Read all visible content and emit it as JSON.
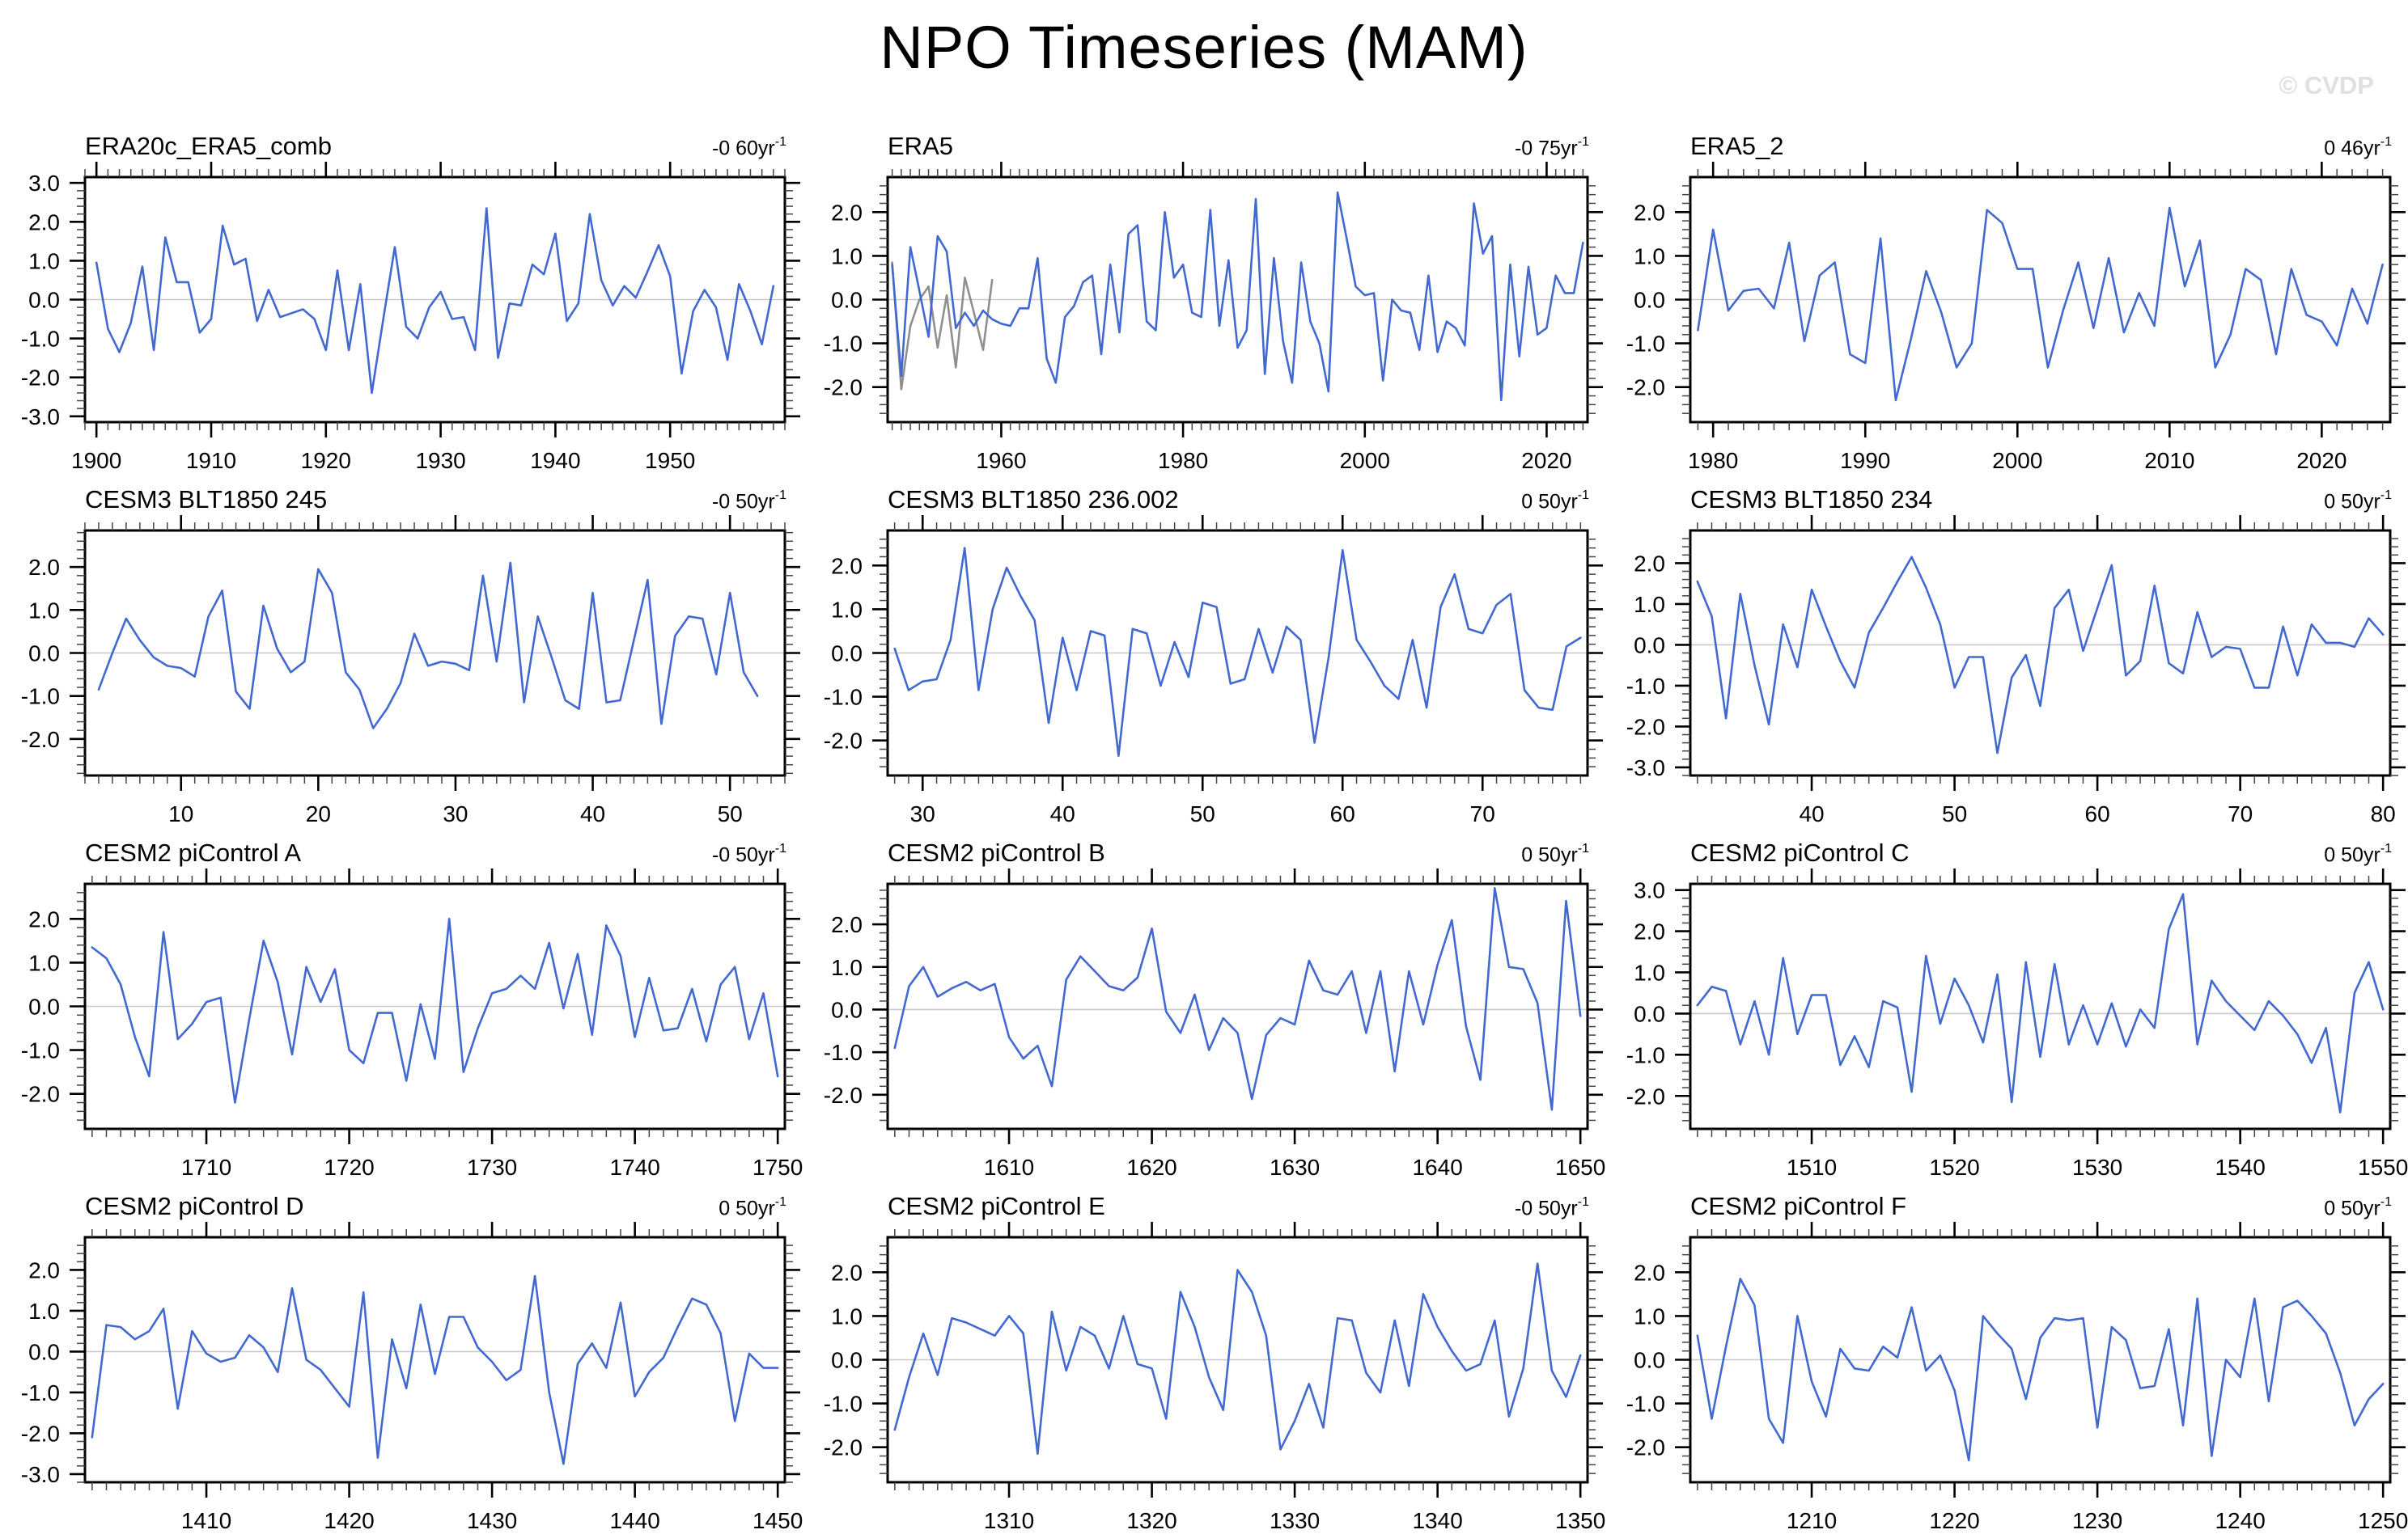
{
  "page": {
    "title": "NPO Timeseries (MAM)",
    "watermark": "© CVDP"
  },
  "colors": {
    "line": "#4169D0",
    "ref_line": "#8F8F8F",
    "zero_line": "#C9C9C9",
    "axis": "#000000",
    "minor_tick": "#444444"
  },
  "chart_data": [
    {
      "type": "line",
      "name": "ERA20c_ERA5_comb",
      "trend": "-0 60yr",
      "trend_sup": "-1",
      "x_start": 1900,
      "x_step": 1,
      "xlim": [
        1899,
        1960
      ],
      "ylim": [
        -3.15,
        3.15
      ],
      "xticks": [
        1900,
        1910,
        1920,
        1930,
        1940,
        1950
      ],
      "yticks": [
        3.0,
        2.0,
        1.0,
        0.0,
        -1.0,
        -2.0,
        -3.0
      ],
      "y_minor_step": 0.2,
      "x_minor_step": 1,
      "values": [
        0.95,
        -0.75,
        -1.35,
        -0.6,
        0.85,
        -1.3,
        1.6,
        0.45,
        0.45,
        -0.85,
        -0.5,
        1.9,
        0.9,
        1.05,
        -0.55,
        0.25,
        -0.45,
        -0.35,
        -0.25,
        -0.5,
        -1.3,
        0.75,
        -1.3,
        0.4,
        -2.4,
        -0.5,
        1.35,
        -0.7,
        -1.0,
        -0.2,
        0.2,
        -0.5,
        -0.45,
        -1.3,
        2.35,
        -1.5,
        -0.1,
        -0.15,
        0.9,
        0.65,
        1.7,
        -0.55,
        -0.1,
        2.2,
        0.5,
        -0.15,
        0.35,
        0.05,
        0.7,
        1.4,
        0.6,
        -1.9,
        -0.3,
        0.25,
        -0.2,
        -1.55,
        0.4,
        -0.3,
        -1.15,
        0.35
      ]
    },
    {
      "type": "line",
      "name": "ERA5",
      "trend": "-0 75yr",
      "trend_sup": "-1",
      "x_start": 1948,
      "x_step": 1,
      "xlim": [
        1947.5,
        2024.5
      ],
      "ylim": [
        -2.8,
        2.8
      ],
      "xticks": [
        1960,
        1980,
        2000,
        2020
      ],
      "yticks": [
        2.0,
        1.0,
        0.0,
        -1.0,
        -2.0
      ],
      "y_minor_step": 0.2,
      "x_minor_step": 1,
      "values": [
        0.8,
        -1.75,
        1.2,
        0.2,
        -0.85,
        1.45,
        1.1,
        -0.65,
        -0.3,
        -0.6,
        -0.25,
        -0.45,
        -0.55,
        -0.6,
        -0.2,
        -0.2,
        0.95,
        -1.35,
        -1.9,
        -0.4,
        -0.15,
        0.4,
        0.55,
        -1.25,
        0.8,
        -0.75,
        1.5,
        1.7,
        -0.5,
        -0.7,
        2.0,
        0.5,
        0.8,
        -0.3,
        -0.4,
        2.05,
        -0.6,
        0.9,
        -1.1,
        -0.7,
        2.3,
        -1.7,
        0.95,
        -0.95,
        -1.9,
        0.85,
        -0.5,
        -1.0,
        -2.1,
        2.45,
        1.4,
        0.3,
        0.1,
        0.15,
        -1.85,
        0.0,
        -0.25,
        -0.3,
        -1.15,
        0.55,
        -1.2,
        -0.5,
        -0.65,
        -1.05,
        2.2,
        1.05,
        1.45,
        -2.3,
        0.8,
        -1.3,
        0.75,
        -0.8,
        -0.65,
        0.55,
        0.15,
        0.15,
        1.3
      ],
      "ref_x_start": 1948,
      "ref_values": [
        0.85,
        -2.05,
        -0.6,
        0.0,
        0.3,
        -1.1,
        0.1,
        -1.55,
        0.5,
        -0.3,
        -1.15,
        0.45
      ]
    },
    {
      "type": "line",
      "name": "ERA5_2",
      "trend": "0 46yr",
      "trend_sup": "-1",
      "x_start": 1979,
      "x_step": 1,
      "xlim": [
        1978.5,
        2024.5
      ],
      "ylim": [
        -2.8,
        2.8
      ],
      "xticks": [
        1980,
        1990,
        2000,
        2010,
        2020
      ],
      "yticks": [
        2.0,
        1.0,
        0.0,
        -1.0,
        -2.0
      ],
      "y_minor_step": 0.2,
      "x_minor_step": 1,
      "values": [
        -0.7,
        1.6,
        -0.25,
        0.2,
        0.25,
        -0.2,
        1.3,
        -0.95,
        0.55,
        0.85,
        -1.25,
        -1.45,
        1.4,
        -2.3,
        -0.9,
        0.65,
        -0.3,
        -1.55,
        -1.0,
        2.05,
        1.75,
        0.7,
        0.7,
        -1.55,
        -0.25,
        0.85,
        -0.65,
        0.95,
        -0.75,
        0.15,
        -0.6,
        2.1,
        0.3,
        1.35,
        -1.55,
        -0.8,
        0.7,
        0.45,
        -1.25,
        0.7,
        -0.35,
        -0.5,
        -1.05,
        0.25,
        -0.55,
        0.8
      ]
    },
    {
      "type": "line",
      "name": "CESM3 BLT1850 245",
      "trend": "-0 50yr",
      "trend_sup": "-1",
      "x_start": 4,
      "x_step": 1,
      "xlim": [
        3,
        54
      ],
      "ylim": [
        -2.85,
        2.85
      ],
      "xticks": [
        10,
        20,
        30,
        40,
        50
      ],
      "yticks": [
        2.0,
        1.0,
        0.0,
        -1.0,
        -2.0
      ],
      "y_minor_step": 0.2,
      "x_minor_step": 1,
      "values": [
        -0.85,
        0.0,
        0.8,
        0.3,
        -0.1,
        -0.3,
        -0.35,
        -0.55,
        0.85,
        1.45,
        -0.9,
        -1.3,
        1.1,
        0.1,
        -0.45,
        -0.2,
        1.95,
        1.4,
        -0.45,
        -0.85,
        -1.75,
        -1.3,
        -0.7,
        0.45,
        -0.3,
        -0.2,
        -0.25,
        -0.4,
        1.8,
        -0.2,
        2.1,
        -1.15,
        0.85,
        -0.1,
        -1.1,
        -1.3,
        1.4,
        -1.15,
        -1.1,
        0.3,
        1.7,
        -1.65,
        0.4,
        0.85,
        0.8,
        -0.5,
        1.4,
        -0.45,
        -1.0
      ]
    },
    {
      "type": "line",
      "name": "CESM3 BLT1850 236.002",
      "trend": "0 50yr",
      "trend_sup": "-1",
      "x_start": 28,
      "x_step": 1,
      "xlim": [
        27.5,
        77.5
      ],
      "ylim": [
        -2.8,
        2.8
      ],
      "xticks": [
        30,
        40,
        50,
        60,
        70
      ],
      "yticks": [
        2.0,
        1.0,
        0.0,
        -1.0,
        -2.0
      ],
      "y_minor_step": 0.2,
      "x_minor_step": 1,
      "values": [
        0.1,
        -0.85,
        -0.65,
        -0.6,
        0.3,
        2.4,
        -0.85,
        1.0,
        1.95,
        1.3,
        0.75,
        -1.6,
        0.35,
        -0.85,
        0.5,
        0.4,
        -2.35,
        0.55,
        0.45,
        -0.75,
        0.25,
        -0.55,
        1.15,
        1.05,
        -0.7,
        -0.6,
        0.55,
        -0.45,
        0.6,
        0.3,
        -2.05,
        -0.1,
        2.35,
        0.3,
        -0.2,
        -0.75,
        -1.05,
        0.3,
        -1.25,
        1.05,
        1.8,
        0.55,
        0.45,
        1.1,
        1.35,
        -0.85,
        -1.25,
        -1.3,
        0.15,
        0.35
      ]
    },
    {
      "type": "line",
      "name": "CESM3 BLT1850 234",
      "trend": "0 50yr",
      "trend_sup": "-1",
      "x_start": 32,
      "x_step": 1,
      "xlim": [
        31.5,
        80.5
      ],
      "ylim": [
        -3.2,
        2.8
      ],
      "xticks": [
        40,
        50,
        60,
        70,
        80
      ],
      "yticks": [
        2.0,
        1.0,
        0.0,
        -1.0,
        -2.0,
        -3.0
      ],
      "y_minor_step": 0.2,
      "x_minor_step": 1,
      "values": [
        1.55,
        0.7,
        -1.8,
        1.25,
        -0.5,
        -1.95,
        0.5,
        -0.55,
        1.35,
        0.45,
        -0.4,
        -1.05,
        0.3,
        0.9,
        1.55,
        2.15,
        1.4,
        0.5,
        -1.05,
        -0.3,
        -0.3,
        -2.65,
        -0.8,
        -0.25,
        -1.5,
        0.9,
        1.35,
        -0.15,
        0.9,
        1.95,
        -0.75,
        -0.4,
        1.45,
        -0.45,
        -0.7,
        0.8,
        -0.3,
        -0.05,
        -0.1,
        -1.05,
        -1.05,
        0.45,
        -0.75,
        0.5,
        0.05,
        0.05,
        -0.05,
        0.65,
        0.25
      ]
    },
    {
      "type": "line",
      "name": "CESM2 piControl A",
      "trend": "-0 50yr",
      "trend_sup": "-1",
      "x_start": 1702,
      "x_step": 1,
      "xlim": [
        1701.5,
        1750.5
      ],
      "ylim": [
        -2.8,
        2.8
      ],
      "xticks": [
        1710,
        1720,
        1730,
        1740,
        1750
      ],
      "yticks": [
        2.0,
        1.0,
        0.0,
        -1.0,
        -2.0
      ],
      "y_minor_step": 0.2,
      "x_minor_step": 1,
      "values": [
        1.35,
        1.1,
        0.5,
        -0.7,
        -1.6,
        1.7,
        -0.75,
        -0.4,
        0.1,
        0.2,
        -2.2,
        -0.3,
        1.5,
        0.55,
        -1.1,
        0.9,
        0.1,
        0.85,
        -1.0,
        -1.3,
        -0.15,
        -0.15,
        -1.7,
        0.05,
        -1.2,
        2.0,
        -1.5,
        -0.5,
        0.3,
        0.4,
        0.7,
        0.4,
        1.45,
        -0.05,
        1.2,
        -0.65,
        1.85,
        1.15,
        -0.7,
        0.65,
        -0.55,
        -0.5,
        0.4,
        -0.8,
        0.5,
        0.9,
        -0.75,
        0.3,
        -1.6
      ]
    },
    {
      "type": "line",
      "name": "CESM2 piControl B",
      "trend": "0 50yr",
      "trend_sup": "-1",
      "x_start": 1602,
      "x_step": 1,
      "xlim": [
        1601.5,
        1650.5
      ],
      "ylim": [
        -2.8,
        2.95
      ],
      "xticks": [
        1610,
        1620,
        1630,
        1640,
        1650
      ],
      "yticks": [
        2.0,
        1.0,
        0.0,
        -1.0,
        -2.0
      ],
      "y_minor_step": 0.2,
      "x_minor_step": 1,
      "values": [
        -0.9,
        0.55,
        1.0,
        0.3,
        0.5,
        0.65,
        0.45,
        0.6,
        -0.65,
        -1.15,
        -0.85,
        -1.8,
        0.7,
        1.25,
        0.9,
        0.55,
        0.45,
        0.75,
        1.9,
        -0.05,
        -0.55,
        0.35,
        -0.95,
        -0.2,
        -0.55,
        -2.1,
        -0.6,
        -0.2,
        -0.35,
        1.15,
        0.45,
        0.35,
        0.9,
        -0.55,
        0.9,
        -1.45,
        0.9,
        -0.35,
        1.05,
        2.1,
        -0.4,
        -1.65,
        2.85,
        1.0,
        0.95,
        0.15,
        -2.35,
        2.55,
        -0.15
      ]
    },
    {
      "type": "line",
      "name": "CESM2 piControl C",
      "trend": "0 50yr",
      "trend_sup": "-1",
      "x_start": 1502,
      "x_step": 1,
      "xlim": [
        1501.5,
        1550.5
      ],
      "ylim": [
        -2.8,
        3.15
      ],
      "xticks": [
        1510,
        1520,
        1530,
        1540,
        1550
      ],
      "yticks": [
        3.0,
        2.0,
        1.0,
        0.0,
        -1.0,
        -2.0
      ],
      "y_minor_step": 0.2,
      "x_minor_step": 1,
      "values": [
        0.2,
        0.65,
        0.55,
        -0.75,
        0.3,
        -1.0,
        1.35,
        -0.5,
        0.45,
        0.45,
        -1.25,
        -0.55,
        -1.3,
        0.3,
        0.15,
        -1.9,
        1.4,
        -0.25,
        0.85,
        0.2,
        -0.7,
        0.95,
        -2.15,
        1.25,
        -1.05,
        1.2,
        -0.75,
        0.2,
        -0.75,
        0.25,
        -0.8,
        0.1,
        -0.35,
        2.05,
        2.9,
        -0.75,
        0.8,
        0.3,
        -0.05,
        -0.4,
        0.3,
        -0.05,
        -0.5,
        -1.2,
        -0.35,
        -2.4,
        0.5,
        1.25,
        0.1
      ]
    },
    {
      "type": "line",
      "name": "CESM2 piControl D",
      "trend": "0 50yr",
      "trend_sup": "-1",
      "x_start": 1402,
      "x_step": 1,
      "xlim": [
        1401.5,
        1450.5
      ],
      "ylim": [
        -3.2,
        2.8
      ],
      "xticks": [
        1410,
        1420,
        1430,
        1440,
        1450
      ],
      "yticks": [
        2.0,
        1.0,
        0.0,
        -1.0,
        -2.0,
        -3.0
      ],
      "y_minor_step": 0.2,
      "x_minor_step": 1,
      "values": [
        -2.1,
        0.65,
        0.6,
        0.3,
        0.5,
        1.05,
        -1.4,
        0.5,
        -0.05,
        -0.25,
        -0.15,
        0.4,
        0.1,
        -0.5,
        1.55,
        -0.2,
        -0.45,
        -0.9,
        -1.35,
        1.45,
        -2.6,
        0.3,
        -0.9,
        1.15,
        -0.55,
        0.85,
        0.85,
        0.1,
        -0.25,
        -0.7,
        -0.45,
        1.85,
        -1.0,
        -2.75,
        -0.3,
        0.2,
        -0.4,
        1.2,
        -1.1,
        -0.5,
        -0.15,
        0.6,
        1.3,
        1.15,
        0.45,
        -1.7,
        -0.05,
        -0.4,
        -0.4
      ]
    },
    {
      "type": "line",
      "name": "CESM2 piControl E",
      "trend": "-0 50yr",
      "trend_sup": "-1",
      "x_start": 1302,
      "x_step": 1,
      "xlim": [
        1301.5,
        1350.5
      ],
      "ylim": [
        -2.8,
        2.8
      ],
      "xticks": [
        1310,
        1320,
        1330,
        1340,
        1350
      ],
      "yticks": [
        2.0,
        1.0,
        0.0,
        -1.0,
        -2.0
      ],
      "y_minor_step": 0.2,
      "x_minor_step": 1,
      "values": [
        -1.6,
        -0.4,
        0.6,
        -0.35,
        0.95,
        0.85,
        0.7,
        0.55,
        1.0,
        0.6,
        -2.15,
        1.1,
        -0.25,
        0.75,
        0.55,
        -0.2,
        1.0,
        -0.1,
        -0.2,
        -1.35,
        1.55,
        0.75,
        -0.4,
        -1.15,
        2.05,
        1.55,
        0.55,
        -2.05,
        -1.4,
        -0.55,
        -1.55,
        0.95,
        0.9,
        -0.3,
        -0.75,
        0.9,
        -0.6,
        1.5,
        0.75,
        0.2,
        -0.25,
        -0.1,
        0.9,
        -1.3,
        -0.2,
        2.2,
        -0.25,
        -0.85,
        0.1
      ]
    },
    {
      "type": "line",
      "name": "CESM2 piControl F",
      "trend": "0 50yr",
      "trend_sup": "-1",
      "x_start": 1202,
      "x_step": 1,
      "xlim": [
        1201.5,
        1250.5
      ],
      "ylim": [
        -2.8,
        2.8
      ],
      "xticks": [
        1210,
        1220,
        1230,
        1240,
        1250
      ],
      "yticks": [
        2.0,
        1.0,
        0.0,
        -1.0,
        -2.0
      ],
      "y_minor_step": 0.2,
      "x_minor_step": 1,
      "values": [
        0.55,
        -1.35,
        0.3,
        1.85,
        1.25,
        -1.35,
        -1.9,
        1.0,
        -0.5,
        -1.3,
        0.25,
        -0.2,
        -0.25,
        0.3,
        0.05,
        1.2,
        -0.25,
        0.1,
        -0.7,
        -2.3,
        1.0,
        0.6,
        0.25,
        -0.9,
        0.5,
        0.95,
        0.9,
        0.95,
        -1.55,
        0.75,
        0.45,
        -0.65,
        -0.6,
        0.7,
        -1.5,
        1.4,
        -2.2,
        0.0,
        -0.4,
        1.4,
        -0.95,
        1.2,
        1.35,
        1.0,
        0.6,
        -0.3,
        -1.5,
        -0.9,
        -0.55
      ]
    }
  ]
}
